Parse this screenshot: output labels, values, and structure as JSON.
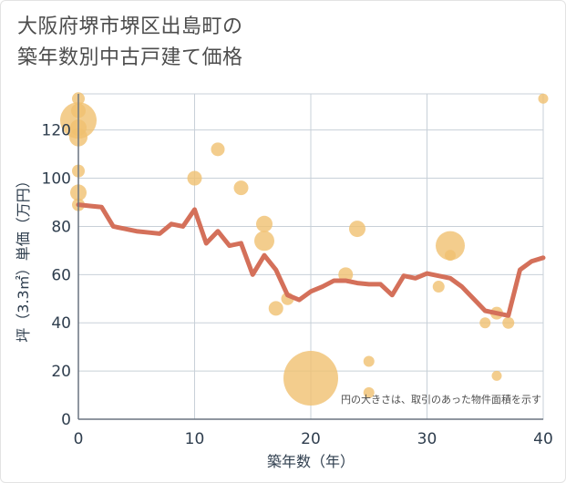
{
  "title_line1": "大阪府堺市堺区出島町の",
  "title_line2": "築年数別中古戸建て価格",
  "chart_data": {
    "type": "scatter+line",
    "xlabel": "築年数（年）",
    "ylabel": "坪（3.3㎡）単価（万円）",
    "xlim": [
      0,
      40
    ],
    "ylim": [
      0,
      135
    ],
    "xticks": [
      0,
      10,
      20,
      30,
      40
    ],
    "yticks": [
      0,
      20,
      40,
      60,
      80,
      100,
      120
    ],
    "grid": true,
    "note": "円の大きさは、取引のあった物件面積を示す",
    "colors": {
      "line": "#d4705a",
      "bubble": "#f0c070",
      "grid": "#c8d0d8",
      "axis": "#6a7480"
    },
    "line": {
      "x": [
        0,
        1,
        2,
        3,
        4,
        5,
        6,
        7,
        8,
        9,
        10,
        11,
        12,
        13,
        14,
        15,
        16,
        17,
        18,
        19,
        20,
        21,
        22,
        23,
        24,
        25,
        26,
        27,
        28,
        29,
        30,
        31,
        32,
        33,
        34,
        35,
        36,
        37,
        38,
        39,
        40
      ],
      "y": [
        89,
        88.5,
        88,
        80,
        79,
        78,
        77.5,
        77,
        81,
        80,
        87,
        73,
        78,
        72,
        73,
        60,
        68,
        62,
        51.5,
        49.5,
        53,
        55,
        57.5,
        57.5,
        56.5,
        56,
        56,
        51.5,
        59.5,
        58.5,
        60.5,
        59.5,
        58.5,
        55,
        50,
        45,
        44,
        43,
        62,
        65.5,
        67
      ]
    },
    "bubbles": [
      {
        "x": 0,
        "y": 133,
        "size": 7
      },
      {
        "x": 0,
        "y": 128,
        "size": 8
      },
      {
        "x": 0,
        "y": 124,
        "size": 20
      },
      {
        "x": 0,
        "y": 121,
        "size": 9
      },
      {
        "x": 0,
        "y": 117,
        "size": 10
      },
      {
        "x": 0,
        "y": 103,
        "size": 7
      },
      {
        "x": 0,
        "y": 94,
        "size": 9
      },
      {
        "x": 0,
        "y": 89,
        "size": 7
      },
      {
        "x": 10,
        "y": 100,
        "size": 8
      },
      {
        "x": 12,
        "y": 112,
        "size": 7.5
      },
      {
        "x": 14,
        "y": 96,
        "size": 8
      },
      {
        "x": 16,
        "y": 81,
        "size": 9
      },
      {
        "x": 16,
        "y": 74,
        "size": 11
      },
      {
        "x": 17,
        "y": 46,
        "size": 8
      },
      {
        "x": 18,
        "y": 50,
        "size": 7
      },
      {
        "x": 20,
        "y": 17,
        "size": 30
      },
      {
        "x": 23,
        "y": 60,
        "size": 8
      },
      {
        "x": 24,
        "y": 79,
        "size": 9
      },
      {
        "x": 25,
        "y": 24,
        "size": 6
      },
      {
        "x": 25,
        "y": 11,
        "size": 6
      },
      {
        "x": 31,
        "y": 55,
        "size": 6.5
      },
      {
        "x": 32,
        "y": 72,
        "size": 16
      },
      {
        "x": 32,
        "y": 68,
        "size": 6
      },
      {
        "x": 35,
        "y": 40,
        "size": 6
      },
      {
        "x": 36,
        "y": 44,
        "size": 7
      },
      {
        "x": 36,
        "y": 18,
        "size": 5.5
      },
      {
        "x": 37,
        "y": 40,
        "size": 6.5
      },
      {
        "x": 40,
        "y": 133,
        "size": 5.5
      }
    ]
  }
}
